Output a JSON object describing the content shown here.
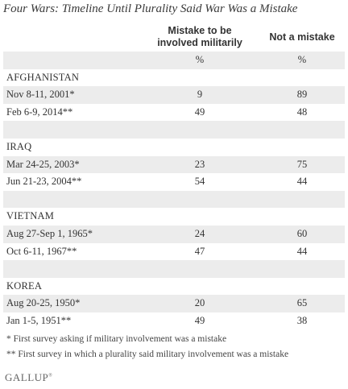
{
  "title": "Four Wars: Timeline Until Plurality Said War Was a Mistake",
  "columns": {
    "col1_line1": "Mistake to be",
    "col1_line2": "involved militarily",
    "col2": "Not a mistake",
    "unit": "%"
  },
  "wars": [
    {
      "name": "AFGHANISTAN",
      "rows": [
        {
          "date": "Nov 8-11, 2001*",
          "mistake": "9",
          "not_mistake": "89"
        },
        {
          "date": "Feb 6-9, 2014**",
          "mistake": "49",
          "not_mistake": "48"
        }
      ]
    },
    {
      "name": "IRAQ",
      "rows": [
        {
          "date": "Mar 24-25, 2003*",
          "mistake": "23",
          "not_mistake": "75"
        },
        {
          "date": "Jun 21-23, 2004**",
          "mistake": "54",
          "not_mistake": "44"
        }
      ]
    },
    {
      "name": "VIETNAM",
      "rows": [
        {
          "date": "Aug 27-Sep 1, 1965*",
          "mistake": "24",
          "not_mistake": "60"
        },
        {
          "date": "Oct 6-11, 1967**",
          "mistake": "47",
          "not_mistake": "44"
        }
      ]
    },
    {
      "name": "KOREA",
      "rows": [
        {
          "date": "Aug 20-25, 1950*",
          "mistake": "20",
          "not_mistake": "65"
        },
        {
          "date": "Jan 1-5, 1951**",
          "mistake": "49",
          "not_mistake": "38"
        }
      ]
    }
  ],
  "footnotes": [
    "* First survey asking if military involvement was a mistake",
    "** First survey in which a plurality said military involvement was a mistake"
  ],
  "brand": "GALLUP",
  "brand_mark": "®",
  "colors": {
    "shade": "#ececec",
    "text": "#333333"
  }
}
